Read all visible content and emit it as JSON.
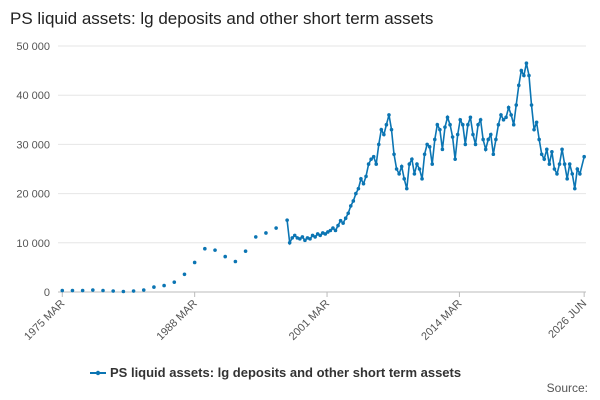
{
  "chart_data": {
    "type": "line",
    "title": "PS liquid assets: lg deposits and other short term assets",
    "source": "Source:",
    "grid": true,
    "xlim": [
      1974.75,
      2026.6
    ],
    "xticks": [
      {
        "value": 1975.17,
        "label": "1975 MAR"
      },
      {
        "value": 1988.17,
        "label": "1988 MAR"
      },
      {
        "value": 2001.17,
        "label": "2001 MAR"
      },
      {
        "value": 2014.17,
        "label": "2014 MAR"
      },
      {
        "value": 2026.42,
        "label": "2026 JUN"
      }
    ],
    "ylim": [
      0,
      50000
    ],
    "yticks": [
      0,
      {
        "value": 10000,
        "label": "10 000"
      },
      {
        "value": 20000,
        "label": "20 000"
      },
      {
        "value": 30000,
        "label": "30 000"
      },
      {
        "value": 40000,
        "label": "40 000"
      },
      {
        "value": 50000,
        "label": "50 000"
      }
    ],
    "x": [
      1975.17,
      1976.17,
      1977.17,
      1978.17,
      1979.17,
      1980.17,
      1981.17,
      1982.17,
      1983.17,
      1984.17,
      1985.17,
      1986.17,
      1987.17,
      1988.17,
      1989.17,
      1990.17,
      1991.17,
      1992.17,
      1993.17,
      1994.17,
      1995.17,
      1996.17,
      1997.25,
      1997.5,
      1997.75,
      1998,
      1998.25,
      1998.5,
      1998.75,
      1999,
      1999.25,
      1999.5,
      1999.75,
      2000,
      2000.25,
      2000.5,
      2000.75,
      2001,
      2001.25,
      2001.5,
      2001.75,
      2002,
      2002.25,
      2002.5,
      2002.75,
      2003,
      2003.25,
      2003.5,
      2003.75,
      2004,
      2004.25,
      2004.5,
      2004.75,
      2005,
      2005.25,
      2005.5,
      2005.75,
      2006,
      2006.25,
      2006.5,
      2006.75,
      2007,
      2007.25,
      2007.5,
      2007.75,
      2008,
      2008.25,
      2008.5,
      2008.75,
      2009,
      2009.25,
      2009.5,
      2009.75,
      2010,
      2010.25,
      2010.5,
      2010.75,
      2011,
      2011.25,
      2011.5,
      2011.75,
      2012,
      2012.25,
      2012.5,
      2012.75,
      2013,
      2013.25,
      2013.5,
      2013.75,
      2014,
      2014.25,
      2014.5,
      2014.75,
      2015,
      2015.25,
      2015.5,
      2015.75,
      2016,
      2016.25,
      2016.5,
      2016.75,
      2017,
      2017.25,
      2017.5,
      2017.75,
      2018,
      2018.25,
      2018.5,
      2018.75,
      2019,
      2019.25,
      2019.5,
      2019.75,
      2020,
      2020.25,
      2020.5,
      2020.75,
      2021,
      2021.25,
      2021.5,
      2021.75,
      2022,
      2022.25,
      2022.5,
      2022.75,
      2023,
      2023.25,
      2023.5,
      2023.75,
      2024,
      2024.25,
      2024.5,
      2024.75,
      2025,
      2025.25,
      2025.5,
      2025.75,
      2026,
      2026.42
    ],
    "series": [
      {
        "name": "PS liquid assets: lg deposits and other short term assets",
        "color": "#0b75b3",
        "values": [
          300,
          300,
          300,
          400,
          300,
          200,
          100,
          200,
          400,
          1000,
          1300,
          2000,
          3600,
          6000,
          8800,
          8500,
          7200,
          6200,
          8300,
          11200,
          12000,
          13000,
          14600,
          10000,
          11000,
          11500,
          11000,
          10800,
          11200,
          10500,
          11000,
          10800,
          11500,
          11200,
          11800,
          11500,
          12000,
          11800,
          12200,
          12500,
          13000,
          12500,
          13500,
          14500,
          14000,
          15000,
          16000,
          17500,
          18500,
          20000,
          21000,
          23000,
          22000,
          23500,
          26000,
          27000,
          27500,
          26000,
          30000,
          33000,
          32000,
          34000,
          36000,
          33000,
          28000,
          25000,
          24000,
          25500,
          23000,
          21000,
          26000,
          27000,
          24000,
          26000,
          25000,
          23000,
          28000,
          30000,
          29500,
          26000,
          31000,
          34000,
          33000,
          29000,
          33500,
          35500,
          34000,
          31500,
          27000,
          32000,
          35000,
          34000,
          30000,
          34000,
          35500,
          32000,
          30000,
          34000,
          35000,
          31000,
          29000,
          31000,
          32000,
          28000,
          31000,
          34000,
          36000,
          35000,
          35500,
          37500,
          36000,
          34000,
          38000,
          42000,
          45000,
          44000,
          46500,
          44000,
          38000,
          33000,
          34500,
          31000,
          28000,
          27000,
          29000,
          26000,
          28500,
          25000,
          24000,
          26000,
          29000,
          26000,
          23000,
          26000,
          24000,
          21000,
          25000,
          24000,
          27500
        ]
      }
    ]
  }
}
